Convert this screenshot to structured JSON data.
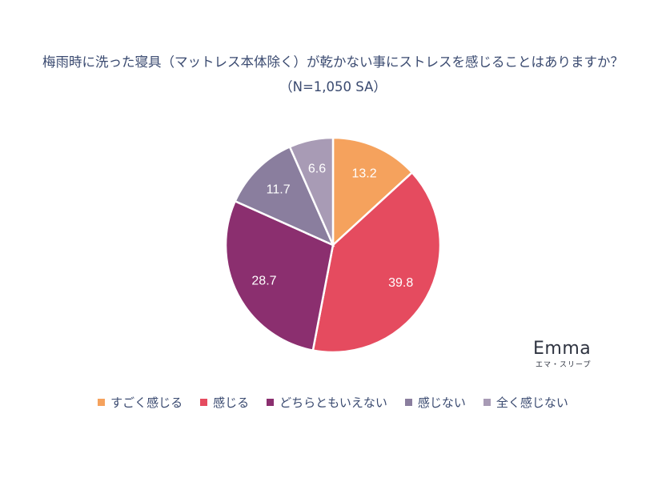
{
  "chart_data": {
    "type": "pie",
    "title": "梅雨時に洗った寝具（マットレス本体除く）が乾かない事にストレスを感じることはありますか？",
    "subtitle": "（N=1,050 SA）",
    "categories": [
      "すごく感じる",
      "感じる",
      "どちらともいえない",
      "感じない",
      "全く感じない"
    ],
    "values": [
      13.2,
      39.8,
      28.7,
      11.7,
      6.6
    ],
    "labels": [
      "13.2",
      "39.8",
      "28.7",
      "11.7",
      "6.6"
    ],
    "colors": [
      "#f5a25d",
      "#e54b5f",
      "#8b2f6f",
      "#8a7e9e",
      "#a89bb5"
    ],
    "legend_position": "bottom",
    "start_angle": "12 o'clock",
    "direction": "clockwise"
  },
  "logo": {
    "wordmark": "Emma",
    "tagline": "エマ・スリープ"
  }
}
